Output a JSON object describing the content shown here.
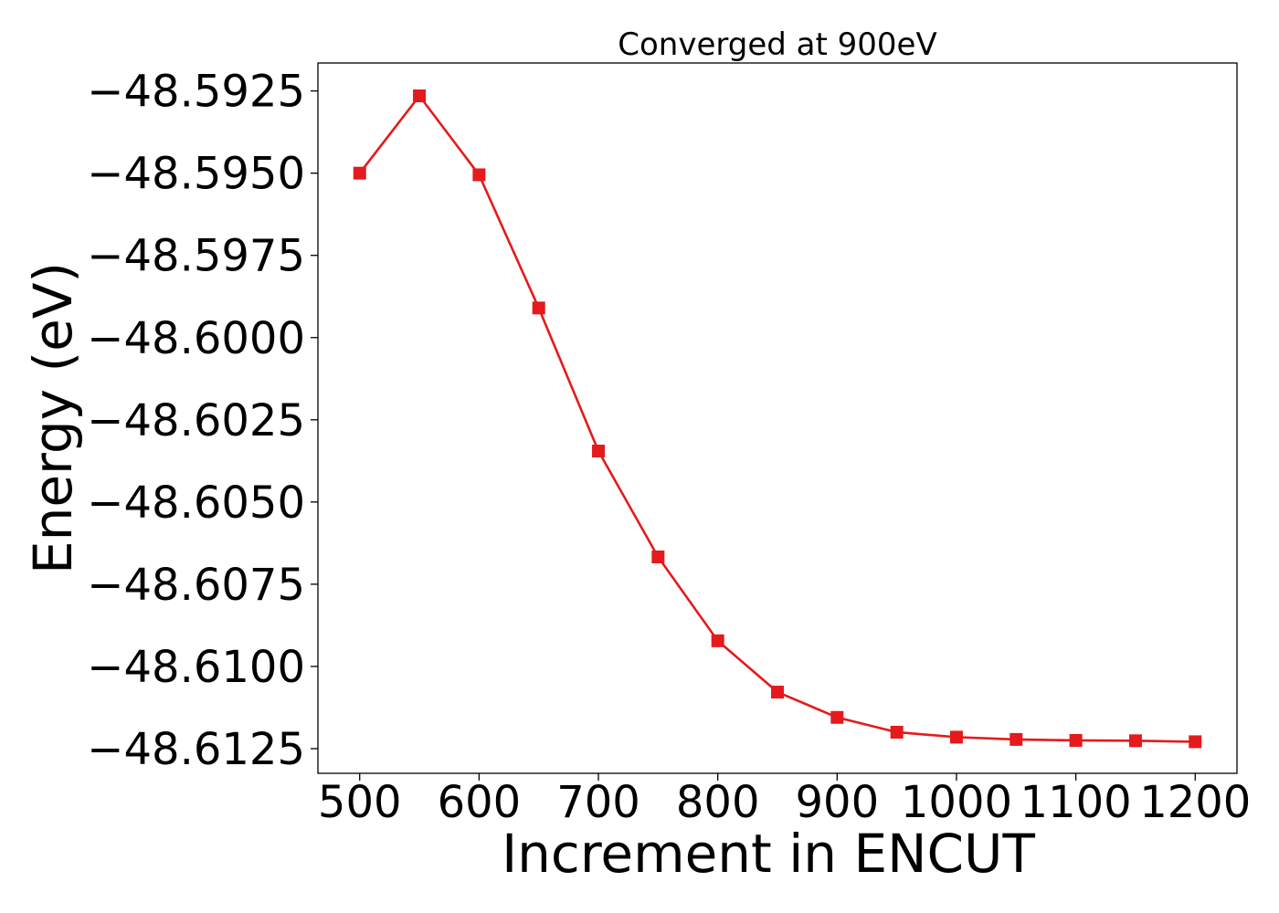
{
  "chart_data": {
    "type": "line",
    "title": "Converged at 900eV",
    "xlabel": "Increment in ENCUT",
    "ylabel": "Energy (eV)",
    "x": [
      500,
      550,
      600,
      650,
      700,
      750,
      800,
      850,
      900,
      950,
      1000,
      1050,
      1100,
      1150,
      1200
    ],
    "series": [
      {
        "values": [
          -48.595,
          -48.59265,
          -48.59505,
          -48.5991,
          -48.60345,
          -48.60667,
          -48.60922,
          -48.61078,
          -48.61155,
          -48.612,
          -48.61215,
          -48.61222,
          -48.61225,
          -48.61226,
          -48.61229
        ],
        "color": "#e41a1c",
        "marker": "square"
      }
    ],
    "xticks": [
      500,
      600,
      700,
      800,
      900,
      1000,
      1100,
      1200
    ],
    "xtick_labels": [
      "500",
      "600",
      "700",
      "800",
      "900",
      "1000",
      "1100",
      "1200"
    ],
    "yticks": [
      -48.5925,
      -48.595,
      -48.5975,
      -48.6,
      -48.6025,
      -48.605,
      -48.6075,
      -48.61,
      -48.6125
    ],
    "ytick_labels": [
      "−48.5925",
      "−48.5950",
      "−48.5975",
      "−48.6000",
      "−48.6025",
      "−48.6050",
      "−48.6075",
      "−48.6100",
      "−48.6125"
    ],
    "xlim": [
      465,
      1235
    ],
    "ylim": [
      -48.61325,
      -48.59165
    ],
    "grid": false,
    "legend": false
  }
}
